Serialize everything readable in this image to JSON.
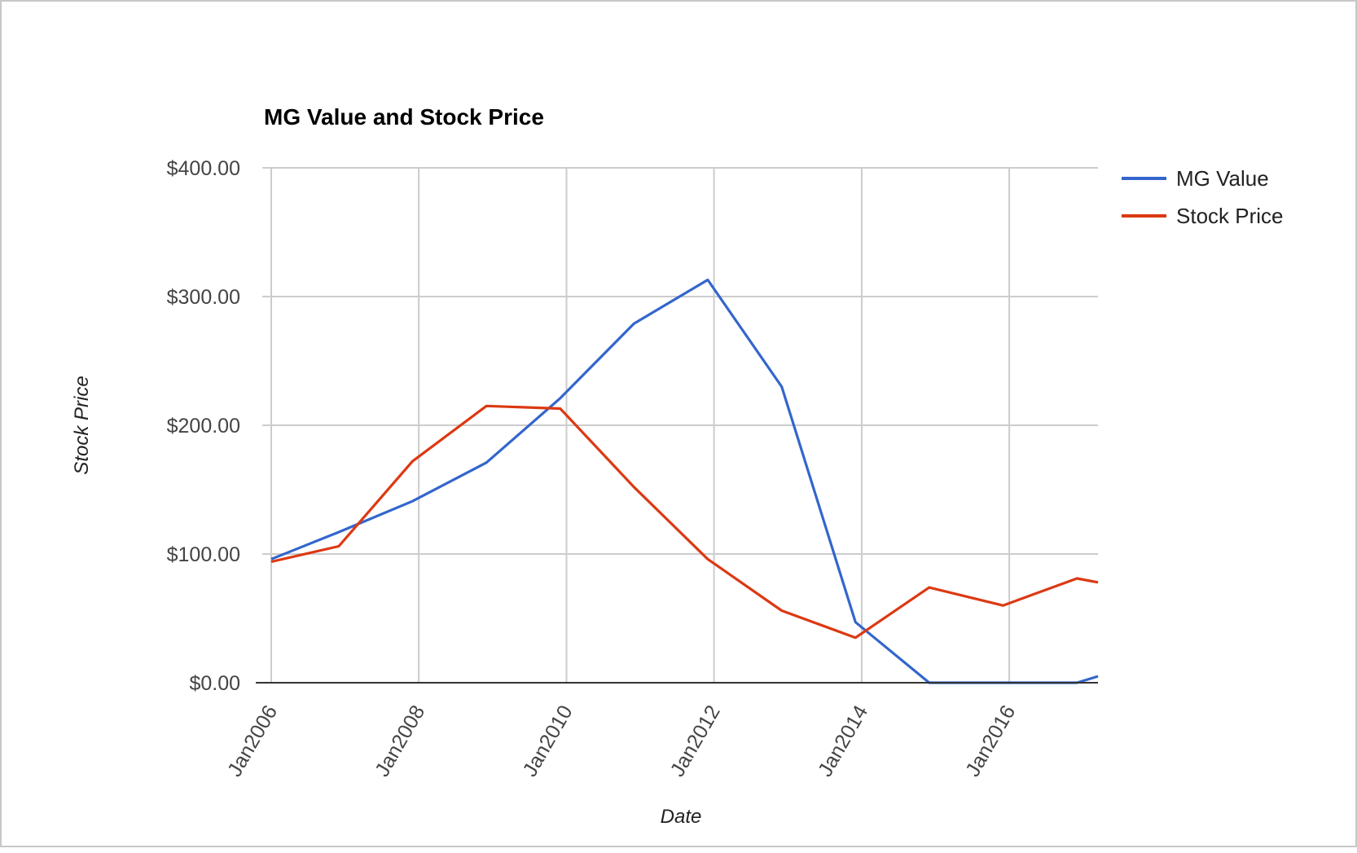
{
  "chart_data": {
    "type": "line",
    "title": "MG Value and Stock Price",
    "xlabel": "Date",
    "ylabel": "Stock Price",
    "x_ticks": [
      "Jan2006",
      "Jan2008",
      "Jan2010",
      "Jan2012",
      "Jan2014",
      "Jan2016"
    ],
    "y_ticks": [
      "$0.00",
      "$100.00",
      "$200.00",
      "$300.00",
      "$400.00"
    ],
    "ylim": [
      0,
      400
    ],
    "xlim": [
      "2006-01-01",
      "2017-03-15"
    ],
    "grid": true,
    "legend_position": "right",
    "series": [
      {
        "name": "MG Value",
        "color": "#3366cc",
        "points": [
          [
            "2006-01-01",
            96
          ],
          [
            "2006-12-01",
            117
          ],
          [
            "2007-12-01",
            141
          ],
          [
            "2008-12-01",
            171
          ],
          [
            "2009-12-01",
            221
          ],
          [
            "2010-12-01",
            279
          ],
          [
            "2011-12-01",
            313
          ],
          [
            "2012-12-01",
            230
          ],
          [
            "2013-12-01",
            47
          ],
          [
            "2014-12-01",
            0
          ],
          [
            "2015-12-01",
            0
          ],
          [
            "2016-12-01",
            0
          ],
          [
            "2017-03-15",
            5
          ]
        ]
      },
      {
        "name": "Stock Price",
        "color": "#dc3912",
        "points": [
          [
            "2006-01-01",
            94
          ],
          [
            "2006-12-01",
            106
          ],
          [
            "2007-12-01",
            172
          ],
          [
            "2008-12-01",
            215
          ],
          [
            "2009-12-01",
            213
          ],
          [
            "2010-12-01",
            152
          ],
          [
            "2011-12-01",
            96
          ],
          [
            "2012-12-01",
            56
          ],
          [
            "2013-12-01",
            35
          ],
          [
            "2014-12-01",
            74
          ],
          [
            "2015-12-01",
            60
          ],
          [
            "2016-12-01",
            81
          ],
          [
            "2017-03-15",
            78
          ]
        ]
      }
    ]
  }
}
